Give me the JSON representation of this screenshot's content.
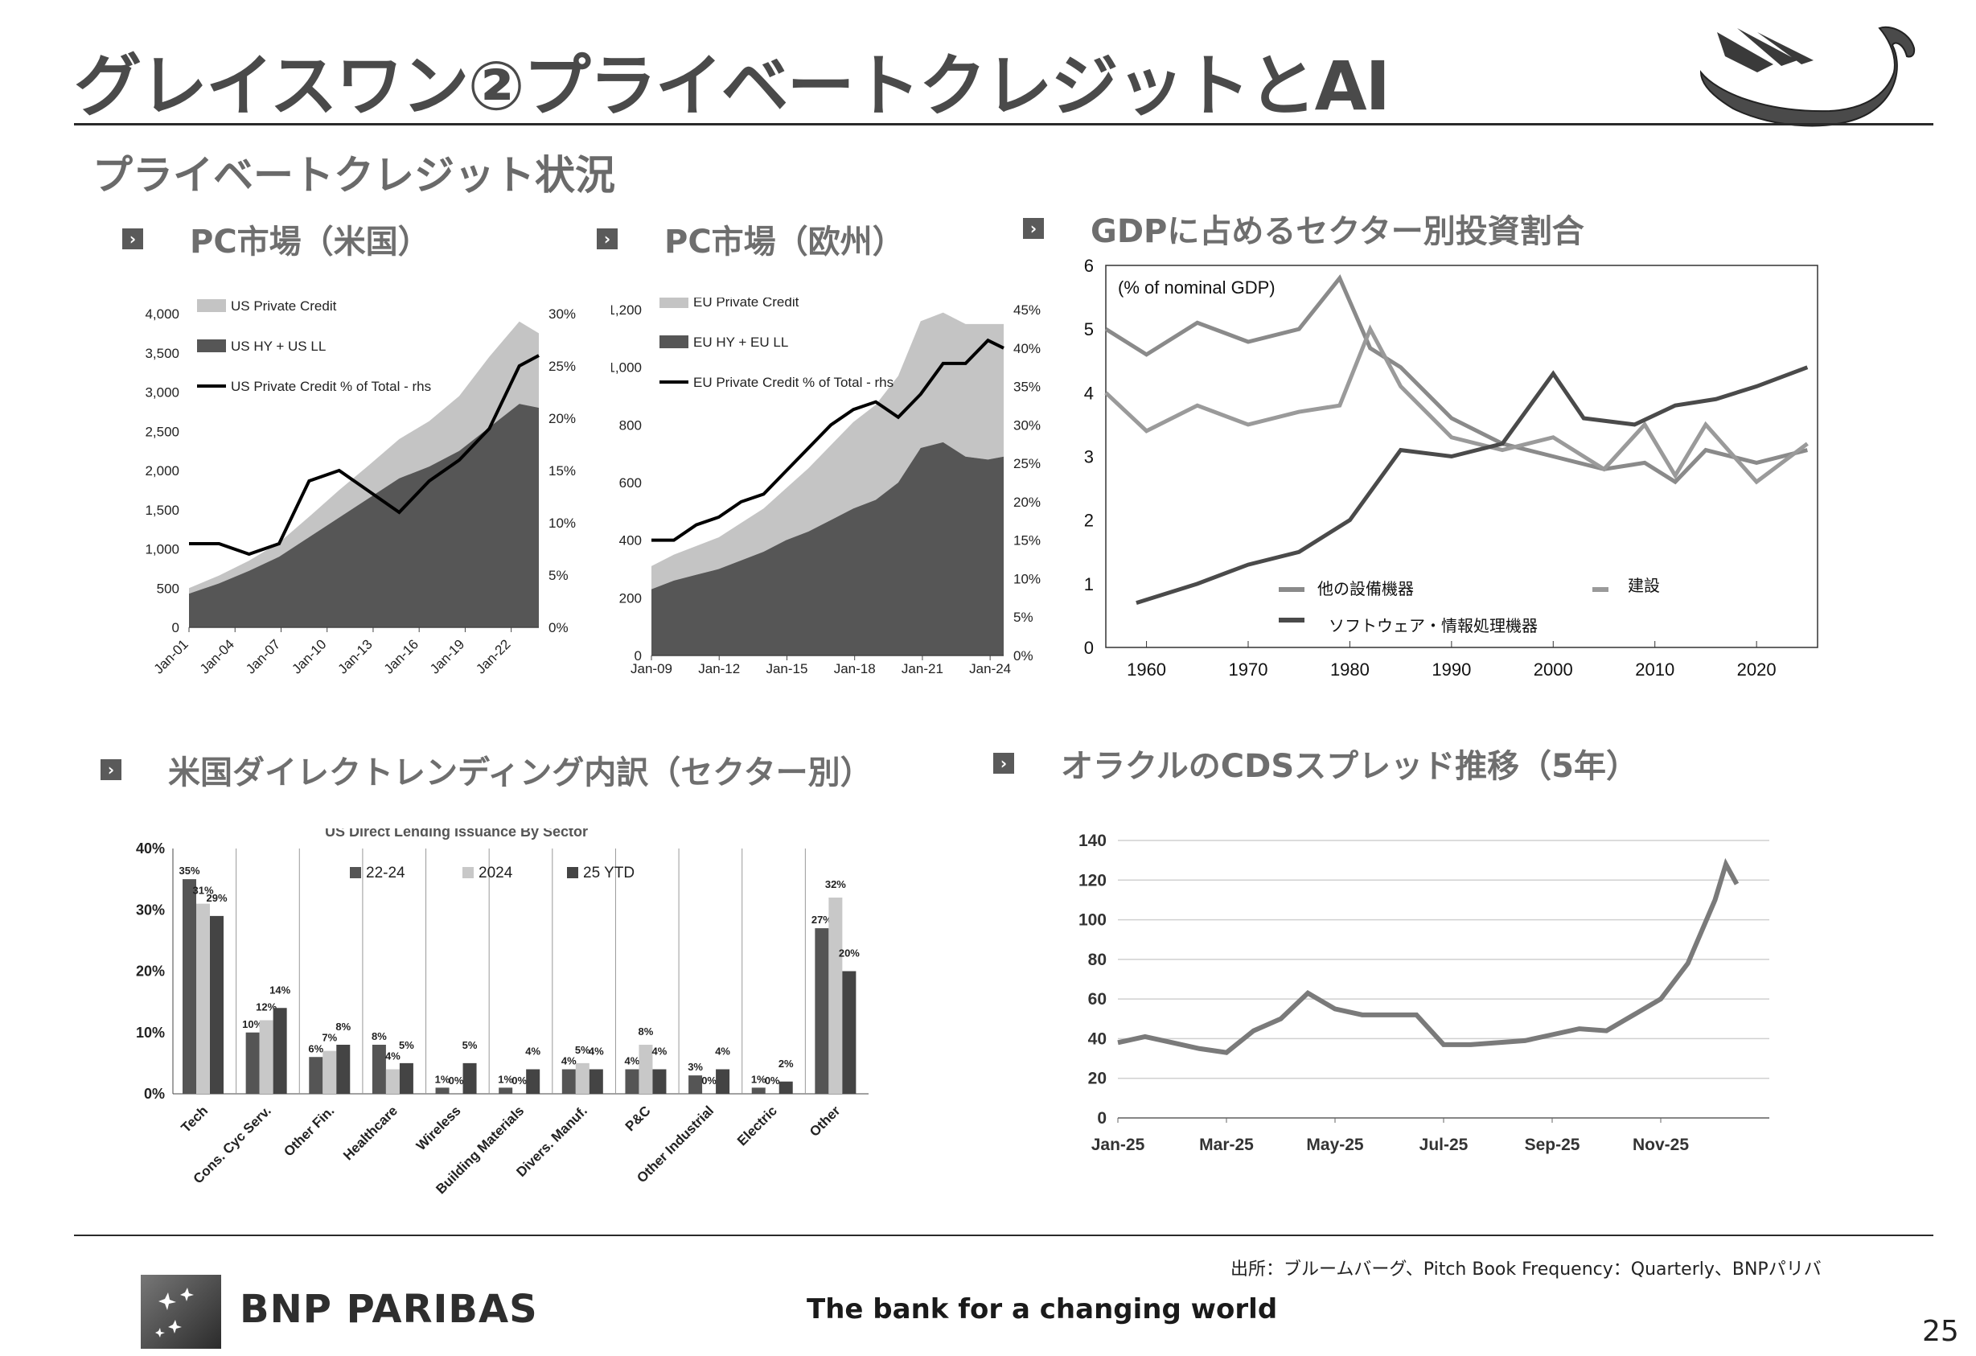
{
  "header": {
    "title": "グレイスワン②プライベートクレジットとAI",
    "subtitle": "プライベートクレジット状況"
  },
  "sections": {
    "us_pc": "PC市場（米国）",
    "eu_pc": "PC市場（欧州）",
    "gdp": "GDPに占めるセクター別投資割合",
    "direct": "米国ダイレクトレンディング内訳（セクター別）",
    "oracle": "オラクルのCDSスプレッド推移（5年）"
  },
  "footer": {
    "source": "出所：ブルームバーグ、Pitch Book Frequency：Quarterly、BNPパリバ",
    "brand": "BNP PARIBAS",
    "tagline": "The bank for a changing world",
    "page": "25"
  },
  "chart_data": [
    {
      "id": "us_pc",
      "type": "area",
      "x_ticks": [
        "Jan-01",
        "Jan-04",
        "Jan-07",
        "Jan-10",
        "Jan-13",
        "Jan-16",
        "Jan-19",
        "Jan-22"
      ],
      "y_ticks": [
        "0",
        "500",
        "1,000",
        "1,500",
        "2,000",
        "2,500",
        "3,000",
        "3,500",
        "4,000"
      ],
      "y2_ticks": [
        "0%",
        "5%",
        "10%",
        "15%",
        "20%",
        "25%",
        "30%"
      ],
      "ylim": [
        0,
        4000
      ],
      "y2lim": [
        0,
        30
      ],
      "legend": [
        "US Private Credit",
        "US HY + US LL",
        "US Private Credit % of Total - rhs"
      ],
      "years": [
        2001,
        2003,
        2005,
        2007,
        2009,
        2011,
        2013,
        2015,
        2017,
        2019,
        2021,
        2023,
        2024.3
      ],
      "series": [
        {
          "name": "US HY + US LL",
          "values": [
            430,
            560,
            720,
            900,
            1150,
            1400,
            1650,
            1900,
            2050,
            2250,
            2550,
            2850,
            2800
          ]
        },
        {
          "name": "US Private Credit",
          "values": [
            70,
            100,
            130,
            180,
            260,
            350,
            420,
            500,
            580,
            700,
            900,
            1050,
            950
          ]
        },
        {
          "name": "US Private Credit % of Total - rhs",
          "values": [
            8,
            8,
            7,
            8,
            14,
            15,
            13,
            11,
            14,
            16,
            19,
            25,
            26
          ]
        }
      ]
    },
    {
      "id": "eu_pc",
      "type": "area",
      "x_ticks": [
        "Jan-09",
        "Jan-12",
        "Jan-15",
        "Jan-18",
        "Jan-21",
        "Jan-24"
      ],
      "y_ticks": [
        "0",
        "200",
        "400",
        "600",
        "800",
        "1,000",
        "1,200"
      ],
      "y2_ticks": [
        "0%",
        "5%",
        "10%",
        "15%",
        "20%",
        "25%",
        "30%",
        "35%",
        "40%",
        "45%"
      ],
      "ylim": [
        0,
        1200
      ],
      "y2lim": [
        0,
        45
      ],
      "legend": [
        "EU Private Credit",
        "EU HY + EU LL",
        "EU Private Credit % of Total - rhs"
      ],
      "years": [
        2009,
        2010,
        2011,
        2012,
        2013,
        2014,
        2015,
        2016,
        2017,
        2018,
        2019,
        2020,
        2021,
        2022,
        2023,
        2024,
        2024.7
      ],
      "series": [
        {
          "name": "EU HY + EU LL",
          "values": [
            230,
            260,
            280,
            300,
            330,
            360,
            400,
            430,
            470,
            510,
            540,
            600,
            720,
            740,
            690,
            680,
            690
          ]
        },
        {
          "name": "EU Private Credit",
          "values": [
            80,
            90,
            100,
            110,
            130,
            150,
            180,
            220,
            260,
            300,
            330,
            370,
            440,
            450,
            460,
            470,
            460
          ]
        },
        {
          "name": "EU Private Credit % of Total - rhs",
          "values": [
            15,
            15,
            17,
            18,
            20,
            21,
            24,
            27,
            30,
            32,
            33,
            31,
            34,
            38,
            38,
            41,
            40
          ]
        }
      ]
    },
    {
      "id": "gdp_share",
      "type": "line",
      "title": "(% of nominal GDP)",
      "x_ticks": [
        "1960",
        "1970",
        "1980",
        "1990",
        "2000",
        "2010",
        "2020"
      ],
      "y_ticks": [
        "0",
        "1",
        "2",
        "3",
        "4",
        "5",
        "6"
      ],
      "xlim": [
        1956,
        2026
      ],
      "ylim": [
        0,
        6
      ],
      "series": [
        {
          "name": "他の設備機器",
          "x": [
            1956,
            1960,
            1965,
            1970,
            1975,
            1979,
            1982,
            1985,
            1990,
            1995,
            2000,
            2005,
            2009,
            2012,
            2015,
            2020,
            2025
          ],
          "values": [
            5.0,
            4.6,
            5.1,
            4.8,
            5.0,
            5.8,
            4.7,
            4.4,
            3.6,
            3.2,
            3.0,
            2.8,
            2.9,
            2.6,
            3.1,
            2.9,
            3.1
          ]
        },
        {
          "name": "建設",
          "x": [
            1956,
            1960,
            1965,
            1970,
            1975,
            1979,
            1982,
            1985,
            1990,
            1995,
            2000,
            2005,
            2009,
            2012,
            2015,
            2020,
            2025
          ],
          "values": [
            4.0,
            3.4,
            3.8,
            3.5,
            3.7,
            3.8,
            5.0,
            4.1,
            3.3,
            3.1,
            3.3,
            2.8,
            3.5,
            2.7,
            3.5,
            2.6,
            3.2
          ]
        },
        {
          "name": "ソフトウェア・情報処理機器",
          "x": [
            1959,
            1965,
            1970,
            1975,
            1980,
            1985,
            1990,
            1995,
            2000,
            2003,
            2008,
            2012,
            2016,
            2020,
            2025
          ],
          "values": [
            0.7,
            1.0,
            1.3,
            1.5,
            2.0,
            3.1,
            3.0,
            3.2,
            4.3,
            3.6,
            3.5,
            3.8,
            3.9,
            4.1,
            4.4
          ]
        }
      ],
      "legend": [
        "他の設備機器",
        "建設",
        "ソフトウェア・情報処理機器"
      ]
    },
    {
      "id": "direct_lending",
      "type": "bar",
      "title": "US Direct Lending Issuance By Sector",
      "categories": [
        "Tech",
        "Cons. Cyc Serv.",
        "Other Fin.",
        "Healthcare",
        "Wireless",
        "Building Materials",
        "Divers. Manuf.",
        "P&C",
        "Other Industrial",
        "Electric",
        "Other"
      ],
      "series": [
        {
          "name": "22-24",
          "values": [
            35,
            10,
            6,
            8,
            1,
            1,
            4,
            4,
            3,
            1,
            27
          ],
          "labels": [
            "35%",
            "10%",
            "6%",
            "8%",
            "1%",
            "1%",
            "4%",
            "4%",
            "3%",
            "1%",
            "27%"
          ]
        },
        {
          "name": "2024",
          "values": [
            31,
            12,
            7,
            4,
            0,
            0,
            5,
            8,
            0,
            0,
            32
          ],
          "labels": [
            "31%",
            "12%",
            "7%",
            "4%",
            "0%",
            "0%",
            "5%",
            "8%",
            "0%",
            "0%",
            "32%"
          ]
        },
        {
          "name": "25 YTD",
          "values": [
            29,
            14,
            8,
            5,
            5,
            4,
            4,
            4,
            4,
            2,
            20
          ],
          "labels": [
            "29%",
            "14%",
            "8%",
            "5%",
            "5%",
            "4%",
            "4%",
            "4%",
            "4%",
            "2%",
            "20%"
          ]
        }
      ],
      "y_ticks": [
        "0%",
        "10%",
        "20%",
        "30%",
        "40%"
      ],
      "ylim": [
        0,
        40
      ]
    },
    {
      "id": "oracle_cds",
      "type": "line",
      "x_ticks": [
        "Jan-25",
        "Mar-25",
        "May-25",
        "Jul-25",
        "Sep-25",
        "Nov-25"
      ],
      "y_ticks": [
        "0",
        "20",
        "40",
        "60",
        "80",
        "100",
        "120",
        "140"
      ],
      "ylim": [
        0,
        140
      ],
      "x_months": [
        0,
        0.5,
        1,
        1.5,
        2,
        2.5,
        3,
        3.5,
        4,
        4.5,
        5,
        5.5,
        6,
        6.5,
        7,
        7.5,
        8,
        8.5,
        9,
        9.5,
        10,
        10.5,
        11,
        11.2,
        11.4
      ],
      "values": [
        38,
        41,
        38,
        35,
        33,
        44,
        50,
        63,
        55,
        52,
        52,
        52,
        37,
        37,
        38,
        39,
        42,
        45,
        44,
        52,
        60,
        78,
        110,
        128,
        118
      ]
    }
  ]
}
